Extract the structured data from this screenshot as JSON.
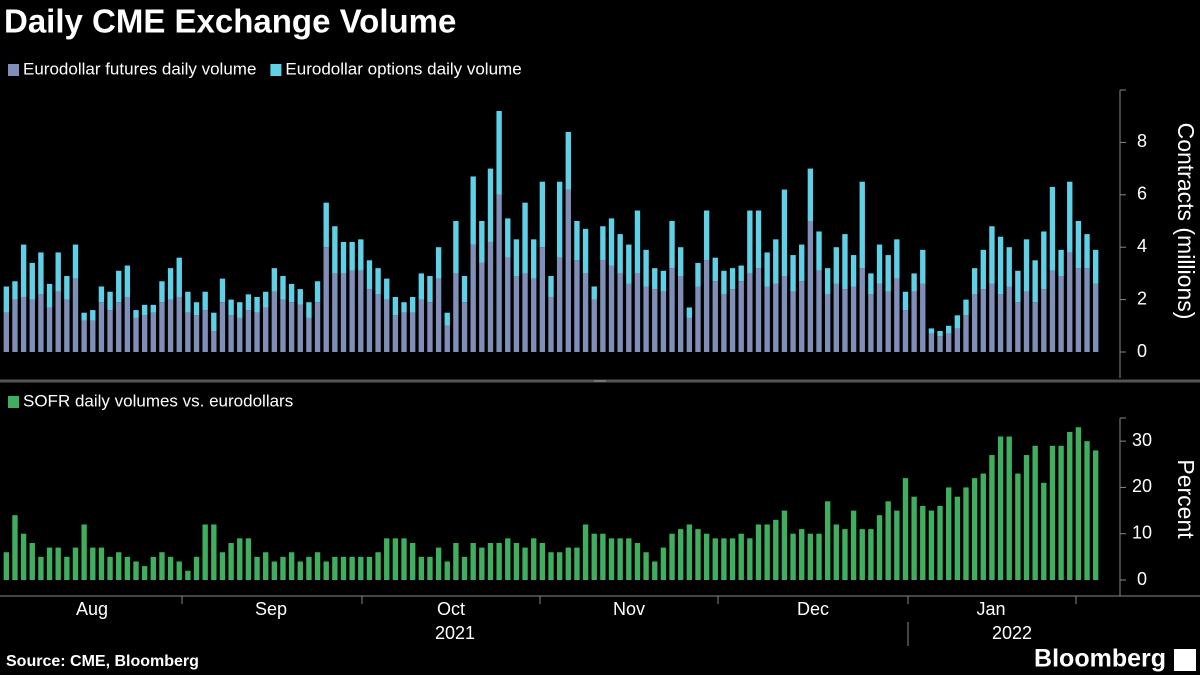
{
  "title": "Daily CME Exchange Volume",
  "source": "Source: CME, Bloomberg",
  "brand": "Bloomberg",
  "x_axis": {
    "months": [
      "Aug",
      "Sep",
      "Oct",
      "Nov",
      "Dec",
      "Jan"
    ],
    "years": [
      "2021",
      "2022"
    ]
  },
  "chart_data": [
    {
      "type": "stacked_bar",
      "y_label": "Contracts (millions)",
      "ylim": [
        0,
        10
      ],
      "yticks": [
        0,
        2,
        4,
        6,
        8
      ],
      "legend": "top-left",
      "series": [
        {
          "name": "Eurodollar futures daily volume",
          "color": "#7f8fb8",
          "values": [
            1.5,
            2.0,
            2.1,
            2.0,
            2.2,
            1.7,
            2.3,
            2.0,
            2.8,
            1.2,
            1.2,
            1.9,
            1.6,
            1.9,
            2.1,
            1.3,
            1.4,
            1.5,
            1.9,
            2.0,
            2.1,
            1.5,
            1.4,
            1.6,
            0.8,
            1.9,
            1.4,
            1.3,
            1.6,
            1.5,
            1.7,
            2.3,
            2.0,
            1.9,
            1.8,
            1.3,
            1.9,
            4.0,
            3.0,
            3.0,
            3.1,
            3.1,
            2.4,
            2.2,
            2.0,
            1.4,
            1.5,
            1.5,
            2.0,
            1.9,
            2.8,
            1.0,
            3.0,
            1.9,
            4.1,
            3.4,
            4.2,
            6.0,
            3.6,
            2.9,
            3.0,
            2.8,
            4.0,
            2.1,
            3.6,
            6.2,
            3.5,
            3.0,
            2.0,
            3.5,
            3.3,
            3.0,
            2.6,
            3.0,
            2.5,
            2.4,
            2.3,
            3.2,
            2.9,
            1.3,
            2.5,
            3.5,
            2.7,
            2.2,
            2.4,
            2.7,
            3.0,
            3.2,
            2.5,
            2.6,
            2.9,
            2.3,
            2.7,
            5.0,
            3.1,
            2.2,
            2.6,
            2.4,
            2.5,
            3.2,
            2.2,
            2.6,
            2.3,
            2.8,
            1.6,
            2.3,
            2.6,
            0.7,
            0.6,
            0.7,
            0.9,
            1.4,
            2.2,
            2.4,
            2.6,
            2.2,
            2.5,
            1.9,
            2.3,
            1.9,
            2.4,
            3.1,
            2.9,
            3.8,
            3.2,
            3.2,
            2.6
          ]
        },
        {
          "name": "Eurodollar options daily volume",
          "color": "#5fd0e6",
          "values": [
            1.0,
            0.7,
            2.0,
            1.4,
            1.6,
            0.9,
            1.5,
            0.9,
            1.3,
            0.3,
            0.4,
            0.6,
            0.7,
            1.2,
            1.2,
            0.3,
            0.4,
            0.3,
            0.8,
            1.2,
            1.5,
            0.8,
            0.5,
            0.7,
            0.7,
            0.9,
            0.6,
            0.6,
            0.6,
            0.6,
            0.6,
            0.9,
            0.9,
            0.7,
            0.6,
            0.6,
            0.8,
            1.7,
            1.8,
            1.2,
            1.1,
            1.2,
            1.1,
            1.0,
            0.8,
            0.7,
            0.4,
            0.6,
            1.0,
            1.0,
            1.2,
            0.5,
            2.0,
            1.0,
            2.6,
            1.6,
            2.8,
            3.2,
            1.5,
            1.4,
            2.7,
            1.5,
            2.5,
            0.8,
            2.9,
            2.2,
            1.5,
            1.7,
            0.5,
            1.3,
            1.8,
            1.5,
            1.5,
            2.4,
            1.4,
            0.8,
            0.8,
            1.8,
            1.1,
            0.4,
            0.9,
            1.9,
            0.9,
            0.9,
            0.8,
            0.6,
            2.4,
            2.2,
            1.3,
            1.7,
            3.3,
            1.4,
            1.4,
            2.0,
            1.5,
            1.0,
            1.4,
            2.1,
            1.2,
            3.3,
            0.8,
            1.5,
            1.4,
            1.5,
            0.7,
            0.7,
            1.3,
            0.2,
            0.2,
            0.3,
            0.5,
            0.6,
            1.0,
            1.5,
            2.2,
            2.2,
            1.5,
            1.2,
            2.0,
            1.6,
            2.2,
            3.2,
            1.0,
            2.7,
            1.8,
            1.3,
            1.3
          ]
        }
      ]
    },
    {
      "type": "bar",
      "y_label": "Percent",
      "ylim": [
        0,
        35
      ],
      "yticks": [
        0,
        10,
        20,
        30
      ],
      "legend": "top-left",
      "series": [
        {
          "name": "SOFR daily volumes vs. eurodollars",
          "color": "#3fae5e",
          "values": [
            6,
            14,
            10,
            8,
            5,
            7,
            7,
            5,
            7,
            12,
            7,
            7,
            5,
            6,
            5,
            4,
            3,
            5,
            6,
            5,
            4,
            2,
            5,
            12,
            12,
            6,
            8,
            9,
            9,
            5,
            6,
            4,
            5,
            6,
            4,
            5,
            6,
            4,
            5,
            5,
            5,
            5,
            5,
            6,
            9,
            9,
            9,
            8,
            5,
            5,
            7,
            4,
            8,
            5,
            8,
            7,
            8,
            8,
            9,
            8,
            7,
            9,
            8,
            6,
            6,
            7,
            7,
            12,
            10,
            10,
            9,
            9,
            9,
            8,
            6,
            4,
            7,
            10,
            11,
            12,
            11,
            10,
            9,
            9,
            9,
            10,
            9,
            12,
            12,
            13,
            15,
            10,
            11,
            10,
            10,
            17,
            12,
            11,
            15,
            11,
            11,
            14,
            17,
            15,
            22,
            18,
            16,
            15,
            16,
            20,
            18,
            20,
            22,
            23,
            27,
            31,
            31,
            23,
            27,
            29,
            21,
            29,
            29,
            32,
            33,
            30,
            28
          ]
        }
      ]
    }
  ]
}
